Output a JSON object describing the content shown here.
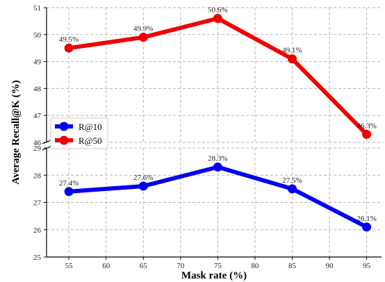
{
  "chart_data": {
    "type": "line",
    "xlabel": "Mask rate (%)",
    "ylabel": "Average Recall@K (%)",
    "x": [
      55,
      65,
      75,
      85,
      95
    ],
    "x_ticks": [
      "55",
      "60",
      "65",
      "70",
      "75",
      "80",
      "85",
      "90",
      "95"
    ],
    "xlim": [
      52,
      97
    ],
    "broken_y_axis": true,
    "upper_panel": {
      "ylim": [
        46,
        51
      ],
      "y_ticks": [
        "46",
        "47",
        "48",
        "49",
        "50",
        "51"
      ]
    },
    "lower_panel": {
      "ylim": [
        25,
        29
      ],
      "y_ticks": [
        "25",
        "26",
        "27",
        "28",
        "29"
      ]
    },
    "grid": true,
    "legend_position": "center-left",
    "series": [
      {
        "name": "R@10",
        "color": "#0000ee",
        "panel": "lower",
        "values": [
          27.4,
          27.6,
          28.3,
          27.5,
          26.1
        ],
        "labels": [
          "27.4%",
          "27.6%",
          "28.3%",
          "27.5%",
          "26.1%"
        ]
      },
      {
        "name": "R@50",
        "color": "#ee0000",
        "panel": "upper",
        "values": [
          49.5,
          49.9,
          50.6,
          49.1,
          46.3
        ],
        "labels": [
          "49.5%",
          "49.9%",
          "50.6%",
          "49.1%",
          "46.3%"
        ]
      }
    ]
  }
}
